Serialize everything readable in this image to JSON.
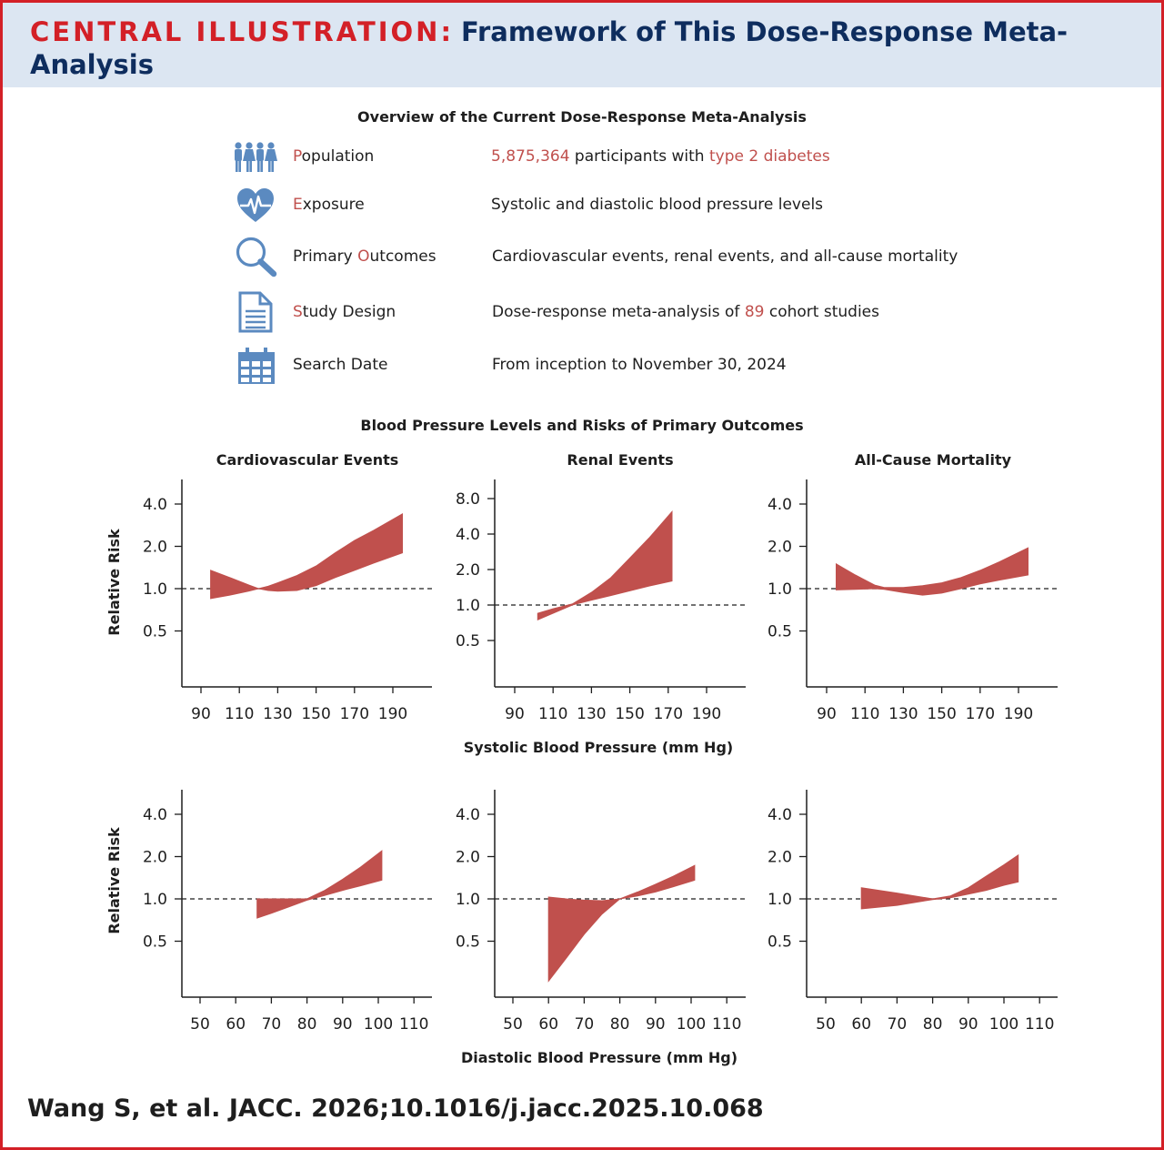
{
  "header": {
    "prefix": "CENTRAL ILLUSTRATION:",
    "title": "Framework of This Dose-Response Meta-Analysis"
  },
  "overview": {
    "heading": "Overview of the Current Dose-Response Meta-Analysis",
    "rows": [
      {
        "icon": "people-icon",
        "label_first": "P",
        "label_rest": "opulation",
        "value_parts": [
          {
            "text": "5,875,364",
            "red": true
          },
          {
            "text": " participants with ",
            "red": false
          },
          {
            "text": "type 2 diabetes",
            "red": true
          }
        ]
      },
      {
        "icon": "heart-pulse-icon",
        "label_first": "E",
        "label_rest": "xposure",
        "value_parts": [
          {
            "text": "Systolic and diastolic blood pressure levels",
            "red": false
          }
        ]
      },
      {
        "icon": "magnifier-icon",
        "label_prefix": "Primary ",
        "label_first": "O",
        "label_rest": "utcomes",
        "value_parts": [
          {
            "text": "Cardiovascular events, renal events, and all-cause mortality",
            "red": false
          }
        ]
      },
      {
        "icon": "document-icon",
        "label_first": "S",
        "label_rest": "tudy Design",
        "value_parts": [
          {
            "text": "Dose-response meta-analysis of ",
            "red": false
          },
          {
            "text": "89",
            "red": true
          },
          {
            "text": " cohort studies",
            "red": false
          }
        ]
      },
      {
        "icon": "calendar-icon",
        "label_first": "",
        "label_rest": "Search Date",
        "value_parts": [
          {
            "text": "From inception to November 30, 2024",
            "red": false
          }
        ]
      }
    ]
  },
  "charts_section": {
    "heading": "Blood Pressure Levels and Risks of Primary Outcomes",
    "systolic_xlabel": "Systolic Blood Pressure (mm Hg)",
    "diastolic_xlabel": "Diastolic Blood Pressure (mm Hg)",
    "ylabel": "Relative Risk"
  },
  "citation": "Wang S, et al. JACC. 2026;10.1016/j.jacc.2025.10.068",
  "colors": {
    "band": "#c0504d",
    "accent_red": "#d32027",
    "navy": "#0e2d5e",
    "header_bg": "#dce6f2"
  },
  "chart_data": [
    {
      "id": "sbp-cv",
      "type": "area",
      "title": "Cardiovascular Events",
      "xlabel": "Systolic Blood Pressure (mm Hg)",
      "ylabel": "Relative Risk",
      "x_ticks": [
        90,
        110,
        130,
        150,
        170,
        190
      ],
      "y_ticks": [
        "4.0",
        "2.0",
        "1.0",
        "0.5"
      ],
      "y_scale": "log2",
      "reference_line": 1.0,
      "band": {
        "x": [
          95,
          105,
          115,
          120,
          125,
          130,
          140,
          150,
          160,
          170,
          180,
          195
        ],
        "upper": [
          1.35,
          1.2,
          1.06,
          1.0,
          1.04,
          1.1,
          1.24,
          1.45,
          1.8,
          2.2,
          2.6,
          3.4
        ],
        "lower": [
          0.85,
          0.9,
          0.96,
          1.0,
          0.97,
          0.96,
          0.97,
          1.05,
          1.2,
          1.35,
          1.52,
          1.8
        ]
      }
    },
    {
      "id": "sbp-renal",
      "type": "area",
      "title": "Renal Events",
      "xlabel": "Systolic Blood Pressure (mm Hg)",
      "ylabel": "Relative Risk",
      "x_ticks": [
        90,
        110,
        130,
        150,
        170,
        190
      ],
      "y_ticks": [
        "8.0",
        "4.0",
        "2.0",
        "1.0",
        "0.5"
      ],
      "y_scale": "log2",
      "reference_line": 1.0,
      "band": {
        "x": [
          102,
          110,
          120,
          130,
          140,
          150,
          160,
          172
        ],
        "upper": [
          0.85,
          0.93,
          1.02,
          1.28,
          1.7,
          2.5,
          3.7,
          6.2
        ],
        "lower": [
          0.75,
          0.85,
          1.0,
          1.1,
          1.2,
          1.32,
          1.45,
          1.6
        ]
      }
    },
    {
      "id": "sbp-mortality",
      "type": "area",
      "title": "All-Cause Mortality",
      "xlabel": "Systolic Blood Pressure (mm Hg)",
      "ylabel": "Relative Risk",
      "x_ticks": [
        90,
        110,
        130,
        150,
        170,
        190
      ],
      "y_ticks": [
        "4.0",
        "2.0",
        "1.0",
        "0.5"
      ],
      "y_scale": "log2",
      "reference_line": 1.0,
      "band": {
        "x": [
          95,
          105,
          115,
          120,
          130,
          140,
          150,
          160,
          170,
          180,
          195
        ],
        "upper": [
          1.5,
          1.25,
          1.06,
          1.02,
          1.02,
          1.05,
          1.1,
          1.2,
          1.35,
          1.55,
          1.95
        ],
        "lower": [
          0.98,
          0.99,
          1.0,
          0.99,
          0.94,
          0.9,
          0.93,
          1.0,
          1.08,
          1.15,
          1.25
        ]
      }
    },
    {
      "id": "dbp-cv",
      "type": "area",
      "title": "",
      "xlabel": "Diastolic Blood Pressure (mm Hg)",
      "ylabel": "Relative Risk",
      "x_ticks": [
        50,
        60,
        70,
        80,
        90,
        100,
        110
      ],
      "y_ticks": [
        "4.0",
        "2.0",
        "1.0",
        "0.5"
      ],
      "y_scale": "log2",
      "reference_line": 1.0,
      "band": {
        "x": [
          66,
          70,
          75,
          80,
          85,
          90,
          95,
          101
        ],
        "upper": [
          1.0,
          1.0,
          1.0,
          1.0,
          1.15,
          1.38,
          1.68,
          2.2
        ],
        "lower": [
          0.73,
          0.79,
          0.88,
          0.98,
          1.06,
          1.15,
          1.24,
          1.36
        ]
      }
    },
    {
      "id": "dbp-renal",
      "type": "area",
      "title": "",
      "xlabel": "Diastolic Blood Pressure (mm Hg)",
      "ylabel": "Relative Risk",
      "x_ticks": [
        50,
        60,
        70,
        80,
        90,
        100,
        110
      ],
      "y_ticks": [
        "4.0",
        "2.0",
        "1.0",
        "0.5"
      ],
      "y_scale": "log2",
      "reference_line": 1.0,
      "band": {
        "x": [
          60,
          65,
          70,
          75,
          80,
          85,
          90,
          95,
          101
        ],
        "upper": [
          1.03,
          1.0,
          0.98,
          0.97,
          1.0,
          1.12,
          1.27,
          1.45,
          1.73
        ],
        "lower": [
          0.26,
          0.38,
          0.56,
          0.78,
          1.0,
          1.05,
          1.12,
          1.22,
          1.36
        ]
      }
    },
    {
      "id": "dbp-mortality",
      "type": "area",
      "title": "",
      "xlabel": "Diastolic Blood Pressure (mm Hg)",
      "ylabel": "Relative Risk",
      "x_ticks": [
        50,
        60,
        70,
        80,
        90,
        100,
        110
      ],
      "y_ticks": [
        "4.0",
        "2.0",
        "1.0",
        "0.5"
      ],
      "y_scale": "log2",
      "reference_line": 1.0,
      "band": {
        "x": [
          60,
          70,
          80,
          85,
          90,
          95,
          100,
          104
        ],
        "upper": [
          1.2,
          1.1,
          1.0,
          1.05,
          1.2,
          1.45,
          1.75,
          2.05
        ],
        "lower": [
          0.85,
          0.9,
          0.99,
          1.02,
          1.08,
          1.15,
          1.25,
          1.32
        ]
      }
    }
  ]
}
